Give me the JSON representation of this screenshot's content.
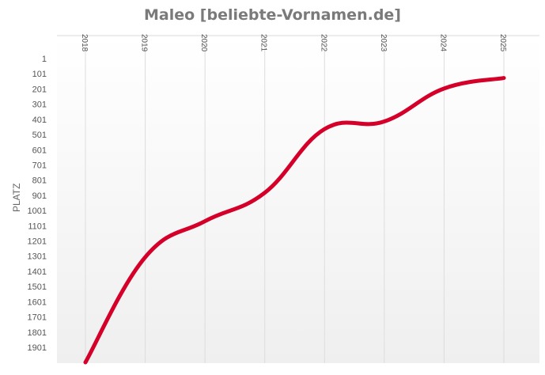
{
  "chart_data": {
    "type": "line",
    "title": "Maleo [beliebte-Vornamen.de]",
    "xlabel": "",
    "ylabel": "PLATZ",
    "x": [
      "2018",
      "2019",
      "2020",
      "2021",
      "2022",
      "2023",
      "2024",
      "2025"
    ],
    "series": [
      {
        "name": "Maleo",
        "color": "#d4002a",
        "values": [
          2000,
          1308,
          1071,
          884,
          465,
          415,
          198,
          129
        ]
      }
    ],
    "y_ticks": [
      1,
      101,
      201,
      301,
      401,
      501,
      601,
      701,
      801,
      901,
      1001,
      1101,
      1201,
      1301,
      1401,
      1501,
      1601,
      1701,
      1801,
      1901
    ],
    "ylim": [
      1,
      2000
    ],
    "y_inverted": true,
    "x_axis_position": "top",
    "grid": {
      "vertical": true,
      "horizontal": false
    },
    "legend": "none",
    "smooth": true
  }
}
